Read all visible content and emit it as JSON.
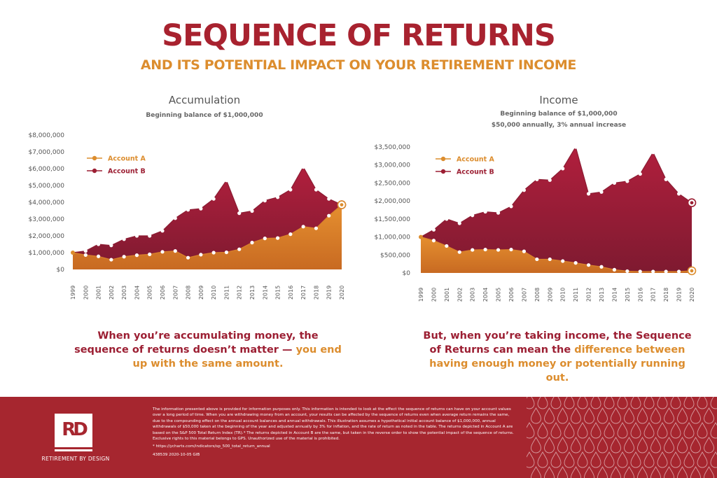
{
  "header": {
    "title": "SEQUENCE OF RETURNS",
    "subtitle": "AND ITS POTENTIAL IMPACT ON YOUR RETIREMENT INCOME"
  },
  "colors": {
    "brand_red": "#a6262f",
    "account_a": "#dc8d2e",
    "account_b": "#9c1f33"
  },
  "left_panel": {
    "title": "Accumulation",
    "subtitle": "Beginning balance of $1,000,000",
    "caption_part1": "When you’re accumulating money, the sequence of returns doesn’t matter — ",
    "caption_part2": "you end up with the same amount."
  },
  "right_panel": {
    "title": "Income",
    "subtitle_line1": "Beginning balance of $1,000,000",
    "subtitle_line2": "$50,000 annually, 3% annual increase",
    "caption_part1": "But, when you’re taking income, the Sequence of Returns can mean the ",
    "caption_part2": "difference between having enough money or potentially running out."
  },
  "chart_data": [
    {
      "type": "area",
      "x": [
        "1999",
        "2000",
        "2001",
        "2002",
        "2003",
        "2004",
        "2005",
        "2006",
        "2007",
        "2008",
        "2009",
        "2010",
        "2011",
        "2012",
        "2013",
        "2014",
        "2015",
        "2016",
        "2017",
        "2018",
        "2019",
        "2020"
      ],
      "ylim": [
        0,
        8000000
      ],
      "yticks": [
        "$0",
        "$1,000,000",
        "$2,000,000",
        "$3,000,000",
        "$4,000,000",
        "$5,000,000",
        "$6,000,000",
        "$7,000,000",
        "$8,000,000"
      ],
      "legend_position": "top-left",
      "series": [
        {
          "name": "Account A",
          "color": "#dc8d2e",
          "values": [
            1000000,
            860000,
            780000,
            580000,
            760000,
            850000,
            900000,
            1050000,
            1100000,
            700000,
            880000,
            1000000,
            1020000,
            1200000,
            1600000,
            1850000,
            1870000,
            2100000,
            2550000,
            2450000,
            3200000,
            3850000
          ]
        },
        {
          "name": "Account B",
          "color": "#9c1f33",
          "values": [
            1000000,
            1100000,
            1500000,
            1430000,
            1800000,
            2000000,
            2000000,
            2300000,
            3050000,
            3550000,
            3620000,
            4200000,
            5300000,
            3350000,
            3480000,
            4100000,
            4300000,
            4750000,
            6100000,
            4750000,
            4200000,
            3850000
          ]
        }
      ]
    },
    {
      "type": "area",
      "x": [
        "1999",
        "2000",
        "2001",
        "2002",
        "2003",
        "2004",
        "2005",
        "2006",
        "2007",
        "2008",
        "2009",
        "2010",
        "2011",
        "2012",
        "2013",
        "2014",
        "2015",
        "2016",
        "2017",
        "2018",
        "2019",
        "2020"
      ],
      "ylim": [
        0,
        3500000
      ],
      "yticks": [
        "$0",
        "$500,000",
        "$1,000,000",
        "$1,500,000",
        "$2,000,000",
        "$2,500,000",
        "$3,000,000",
        "$3,500,000"
      ],
      "legend_position": "top-left",
      "series": [
        {
          "name": "Account A",
          "color": "#dc8d2e",
          "values": [
            1000000,
            900000,
            750000,
            580000,
            640000,
            650000,
            640000,
            650000,
            600000,
            380000,
            380000,
            330000,
            280000,
            220000,
            170000,
            90000,
            50000,
            40000,
            40000,
            40000,
            40000,
            60000
          ]
        },
        {
          "name": "Account B",
          "color": "#9c1f33",
          "values": [
            1000000,
            1200000,
            1500000,
            1380000,
            1600000,
            1700000,
            1670000,
            1850000,
            2300000,
            2600000,
            2580000,
            2900000,
            3500000,
            2200000,
            2250000,
            2500000,
            2550000,
            2750000,
            3350000,
            2600000,
            2200000,
            1950000
          ]
        }
      ]
    }
  ],
  "footer": {
    "logo": "RD",
    "brand": "RETIREMENT BY DESIGN",
    "disclaimer": "The information presented above is provided for information purposes only. This information is intended to look at the effect the sequence of returns can have on your account values over a long period of time. When you are withdrawing money from an account, your results can be affected by the sequence of returns even when average return remains the same, due to the compounding effect on the annual account balances and annual withdrawals. This illustration assumes a hypothetical initial account balance of $1,000,000, annual withdrawals of $50,000 taken at the beginning of the year and adjusted annually by 3% for inflation, and the rate of return as noted in the table. The returns depicted in Account A are based on the S&P 500 Total Return Index (TR).* The returns depicted in Account B are the same, but taken in the reverse order to show the potential impact of the sequence of returns. Exclusive rights to this material belongs to GPS. Unauthorized use of the material is prohibited.",
    "footnote": "* https://ycharts.com/indicators/sp_500_total_return_annual",
    "code": "438539 2020-10-05 GIB"
  }
}
